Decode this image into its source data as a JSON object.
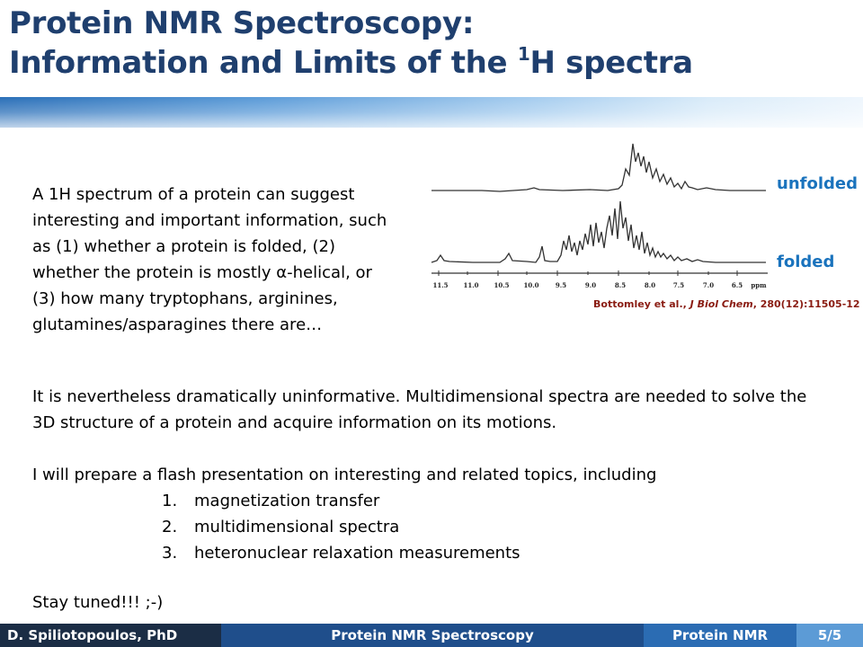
{
  "slide": {
    "title_line1": "Protein NMR Spectroscopy:",
    "title_line2_prefix": "Information and Limits of the ",
    "title_sup": "1",
    "title_line2_suffix": "H spectra",
    "intro_text": "A 1H spectrum of a protein can suggest interesting and important information, such as (1) whether a protein is folded, (2) whether the protein is mostly α-helical, or (3) how many tryptophans, arginines, glutamines/asparagines there are…",
    "paragraph2": "It is nevertheless dramatically uninformative.  Multidimensional spectra are needed to solve the 3D structure of a protein and acquire information on its motions.",
    "paragraph3": "I will prepare a flash presentation on interesting and related topics, including",
    "topics": [
      {
        "num": "1.",
        "text": "magnetization transfer"
      },
      {
        "num": "2.",
        "text": "multidimensional spectra"
      },
      {
        "num": "3.",
        "text": "heteronuclear relaxation measurements"
      }
    ],
    "closing": "Stay tuned!!! ;-)"
  },
  "figure": {
    "label_unfolded": "unfolded",
    "label_folded": "folded",
    "axis_ticks": [
      "11.5",
      "11.0",
      "10.5",
      "10.0",
      "9.5",
      "9.0",
      "8.5",
      "8.0",
      "7.5",
      "7.0",
      "6.5",
      "ppm"
    ],
    "citation_prefix": "Bottomley et al., ",
    "citation_journal": "J Biol Chem",
    "citation_suffix": ", 280(12):11505-12"
  },
  "footer": {
    "author": "D. Spiliotopoulos,  PhD",
    "center": "Protein NMR Spectroscopy",
    "short_title": "Protein NMR",
    "page": "5/5"
  },
  "colors": {
    "title": "#1f3f6e",
    "accent_label": "#1a73bd",
    "citation": "#8a1c12",
    "footer_dark": "#1b2d45",
    "footer_mid": "#1f4e8b",
    "footer_light": "#2b6cb3",
    "footer_page": "#5c9bd6"
  }
}
